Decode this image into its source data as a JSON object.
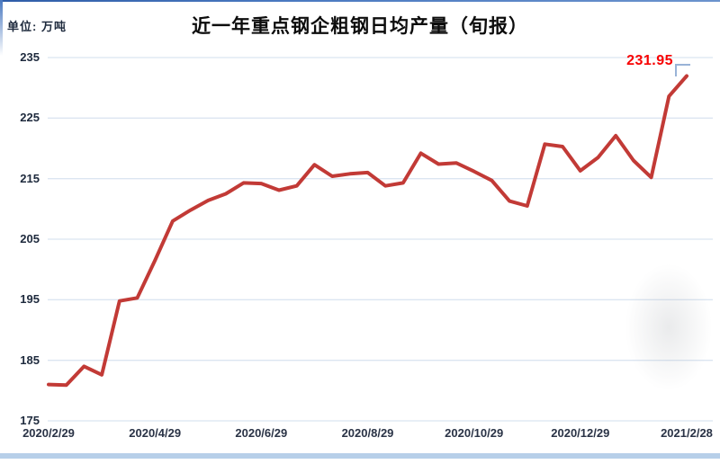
{
  "page": {
    "unit_label": "单位: 万吨",
    "title": "近一年重点钢企粗钢日均产量（旬报）"
  },
  "colors": {
    "line": "#c23a36",
    "gridline": "#dbe5f1",
    "axis_text": "#1e2a3d",
    "annotation_red": "#f80000",
    "top_border_blue": "#3f6cb0",
    "bottom_band_blue": "#b7cfe9",
    "corner_marker_blue": "#8fabd3"
  },
  "chart_data": {
    "type": "line",
    "title": "近一年重点钢企粗钢日均产量（旬报）",
    "unit": "万吨",
    "series_name": "重点钢企粗钢日均产量（旬报）",
    "grid": true,
    "legend_position": "none",
    "ylim": [
      175,
      235
    ],
    "y_tick_step": 10,
    "y_tick_labels": [
      "235",
      "225",
      "215",
      "205",
      "195",
      "185",
      "175"
    ],
    "x_tick_labels": [
      "2020/2/29",
      "2020/4/29",
      "2020/6/29",
      "2020/8/29",
      "2020/10/29",
      "2020/12/29",
      "2021/2/28"
    ],
    "x_tick_indices": [
      0,
      6,
      12,
      18,
      24,
      30,
      36
    ],
    "values": [
      181,
      180.9,
      184,
      182.6,
      194.8,
      195.3,
      201.5,
      208,
      209.8,
      211.4,
      212.5,
      214.3,
      214.2,
      213.1,
      213.8,
      217.3,
      215.4,
      215.8,
      216,
      213.8,
      214.3,
      219.2,
      217.4,
      217.6,
      216.2,
      214.7,
      211.3,
      210.5,
      220.7,
      220.3,
      216.3,
      218.5,
      222.1,
      218,
      215.2,
      228.6,
      231.95
    ],
    "last_point_label": "231.95"
  }
}
